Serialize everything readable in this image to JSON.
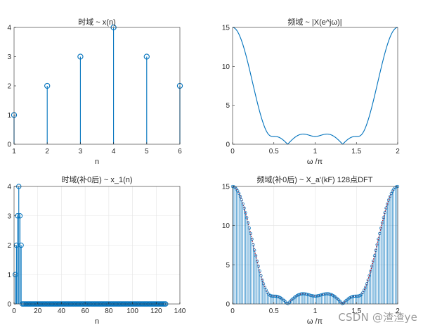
{
  "colors": {
    "line": "#0072BD",
    "axis": "#262626",
    "grid": "#e4e4e4",
    "dft_envelope": "#A2142F"
  },
  "watermark": "CSDN @渣渣ye",
  "chart_data": [
    {
      "type": "stem",
      "title": "时域 ~ x(n)",
      "xlabel": "n",
      "ylabel": "",
      "xlim": [
        1,
        6
      ],
      "ylim": [
        0,
        4
      ],
      "xticks": [
        1,
        2,
        3,
        4,
        5,
        6
      ],
      "yticks": [
        0,
        1,
        2,
        3,
        4
      ],
      "grid": false,
      "x": [
        1,
        2,
        3,
        4,
        5,
        6
      ],
      "y": [
        1,
        2,
        3,
        4,
        3,
        2
      ]
    },
    {
      "type": "line",
      "title": "频域 ~ |X(e^jω)|",
      "xlabel": "ω /π",
      "ylabel": "",
      "xlim": [
        0,
        2
      ],
      "ylim": [
        0,
        15
      ],
      "xticks": [
        0,
        0.5,
        1,
        1.5,
        2
      ],
      "yticks": [
        0,
        5,
        10,
        15
      ],
      "grid": false,
      "function": "|sum_{n=1..6} x(n) e^{-jωn}|",
      "sequence": [
        1,
        2,
        3,
        4,
        3,
        2
      ]
    },
    {
      "type": "stem",
      "title": "时域(补0后) ~ x_1(n)",
      "xlabel": "n",
      "ylabel": "",
      "xlim": [
        0,
        140
      ],
      "ylim": [
        0,
        4
      ],
      "xticks": [
        0,
        20,
        40,
        60,
        80,
        100,
        120,
        140
      ],
      "yticks": [
        0,
        1,
        2,
        3,
        4
      ],
      "grid": true,
      "x_range": [
        1,
        128
      ],
      "nonzero": {
        "x": [
          1,
          2,
          3,
          4,
          5,
          6
        ],
        "y": [
          1,
          2,
          3,
          4,
          3,
          2
        ]
      },
      "y_rest": 0
    },
    {
      "type": "stem",
      "title": "频域(补0后) ~ X_a'(kF) 128点DFT",
      "xlabel": "ω /π",
      "ylabel": "",
      "xlim": [
        0,
        2
      ],
      "ylim": [
        0,
        15
      ],
      "xticks": [
        0,
        0.5,
        1,
        1.5,
        2
      ],
      "yticks": [
        0,
        5,
        10,
        15
      ],
      "grid": true,
      "points": 128,
      "sequence": [
        1,
        2,
        3,
        4,
        3,
        2
      ],
      "envelope_style": "dotted"
    }
  ]
}
